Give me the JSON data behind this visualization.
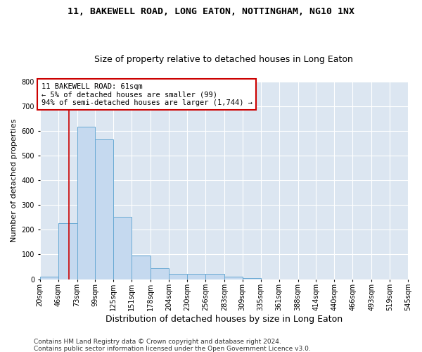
{
  "title": "11, BAKEWELL ROAD, LONG EATON, NOTTINGHAM, NG10 1NX",
  "subtitle": "Size of property relative to detached houses in Long Eaton",
  "xlabel": "Distribution of detached houses by size in Long Eaton",
  "ylabel": "Number of detached properties",
  "footnote1": "Contains HM Land Registry data © Crown copyright and database right 2024.",
  "footnote2": "Contains public sector information licensed under the Open Government Licence v3.0.",
  "bar_edges": [
    20,
    46,
    73,
    99,
    125,
    151,
    178,
    204,
    230,
    256,
    283,
    309,
    335,
    361,
    388,
    414,
    440,
    466,
    493,
    519,
    545
  ],
  "bar_heights": [
    10,
    228,
    618,
    566,
    252,
    96,
    43,
    20,
    20,
    20,
    10,
    5,
    0,
    0,
    0,
    0,
    0,
    0,
    0,
    0
  ],
  "bar_color": "#c5d9ef",
  "bar_edgecolor": "#6aaad4",
  "bar_linewidth": 0.7,
  "vline_x": 61,
  "vline_color": "#cc0000",
  "vline_linewidth": 1.2,
  "annotation_line1": "11 BAKEWELL ROAD: 61sqm",
  "annotation_line2": "← 5% of detached houses are smaller (99)",
  "annotation_line3": "94% of semi-detached houses are larger (1,744) →",
  "annotation_box_color": "#cc0000",
  "annotation_bg_color": "#ffffff",
  "ylim": [
    0,
    800
  ],
  "xlim": [
    20,
    545
  ],
  "tick_labels": [
    "20sqm",
    "46sqm",
    "73sqm",
    "99sqm",
    "125sqm",
    "151sqm",
    "178sqm",
    "204sqm",
    "230sqm",
    "256sqm",
    "283sqm",
    "309sqm",
    "335sqm",
    "361sqm",
    "388sqm",
    "414sqm",
    "440sqm",
    "466sqm",
    "493sqm",
    "519sqm",
    "545sqm"
  ],
  "plot_bg_color": "#dce6f1",
  "fig_bg_color": "#ffffff",
  "grid_color": "#ffffff",
  "title_fontsize": 9.5,
  "subtitle_fontsize": 9,
  "ylabel_fontsize": 8,
  "xlabel_fontsize": 9,
  "footnote_fontsize": 6.5,
  "tick_fontsize": 7,
  "annotation_fontsize": 7.5
}
